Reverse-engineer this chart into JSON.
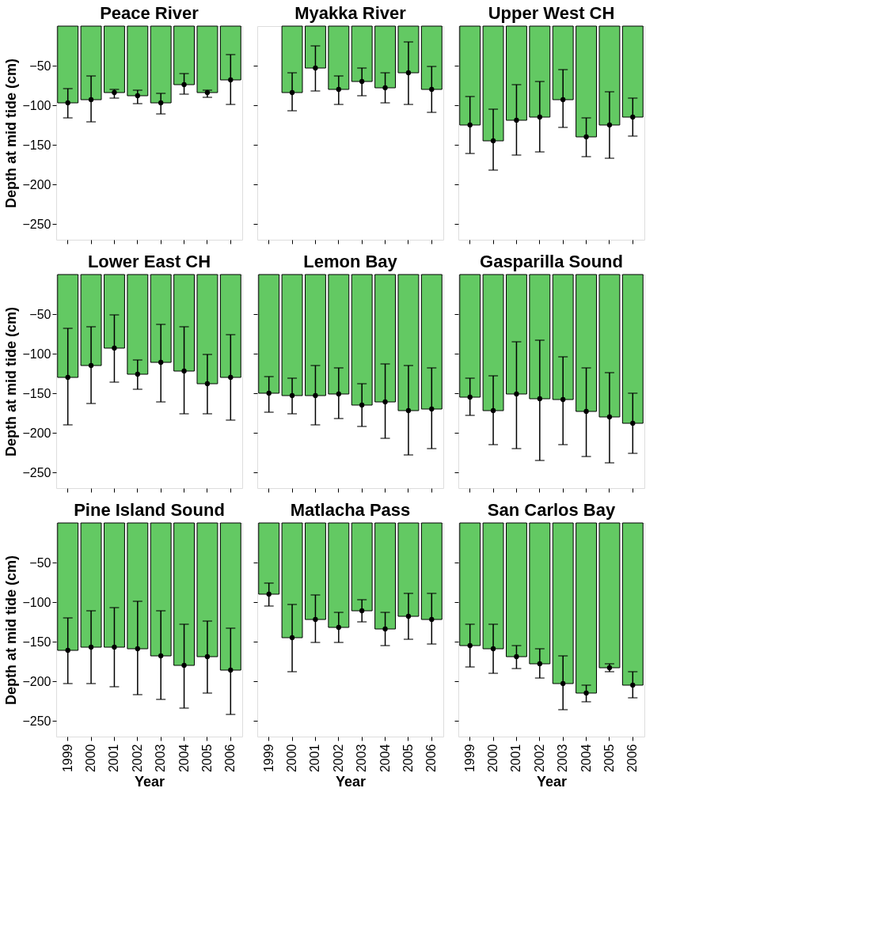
{
  "chart_data": [
    {
      "type": "bar",
      "title": "Peace River",
      "ylabel": "Depth at mid tide (cm)",
      "categories": [
        "1999",
        "2000",
        "2001",
        "2002",
        "2003",
        "2004",
        "2005",
        "2006"
      ],
      "series": [
        {
          "color": "#63c963",
          "values": [
            -97,
            -93,
            -84,
            -88,
            -97,
            -74,
            -84,
            -68
          ]
        },
        {
          "type": "scatter",
          "color": "#000000",
          "marker": "circle",
          "values": [
            -97,
            -93,
            -84,
            -88,
            -97,
            -74,
            -84,
            -68
          ],
          "errors": [
            [
              -116,
              -79
            ],
            [
              -121,
              -63
            ],
            [
              -91,
              -80
            ],
            [
              -98,
              -81
            ],
            [
              -111,
              -85
            ],
            [
              -86,
              -60
            ],
            [
              -90,
              -81
            ],
            [
              -99,
              -36
            ]
          ]
        }
      ],
      "ylim": [
        -270,
        0
      ],
      "yticks": [
        -250,
        -200,
        -150,
        -100,
        -50
      ],
      "grid": false,
      "tick_labels": "y"
    },
    {
      "type": "bar",
      "title": "Myakka River",
      "categories": [
        "1999",
        "2000",
        "2001",
        "2002",
        "2003",
        "2004",
        "2005",
        "2006"
      ],
      "series": [
        {
          "color": "#63c963",
          "values": [
            null,
            -84,
            -53,
            -80,
            -70,
            -78,
            -59,
            -80
          ]
        },
        {
          "type": "scatter",
          "color": "#000000",
          "marker": "circle",
          "values": [
            null,
            -84,
            -53,
            -80,
            -70,
            -78,
            -59,
            -80
          ],
          "errors": [
            null,
            [
              -107,
              -59
            ],
            [
              -82,
              -25
            ],
            [
              -99,
              -63
            ],
            [
              -88,
              -53
            ],
            [
              -97,
              -59
            ],
            [
              -99,
              -20
            ],
            [
              -109,
              -51
            ]
          ]
        }
      ],
      "ylim": [
        -270,
        0
      ],
      "yticks": [
        -250,
        -200,
        -150,
        -100,
        -50
      ],
      "grid": false,
      "tick_labels": false
    },
    {
      "type": "bar",
      "title": "Upper West CH",
      "categories": [
        "1999",
        "2000",
        "2001",
        "2002",
        "2003",
        "2004",
        "2005",
        "2006"
      ],
      "series": [
        {
          "color": "#63c963",
          "values": [
            -125,
            -145,
            -119,
            -115,
            -93,
            -140,
            -125,
            -115
          ]
        },
        {
          "type": "scatter",
          "color": "#000000",
          "marker": "circle",
          "values": [
            -125,
            -145,
            -119,
            -115,
            -93,
            -140,
            -125,
            -115
          ],
          "errors": [
            [
              -161,
              -89
            ],
            [
              -182,
              -105
            ],
            [
              -163,
              -74
            ],
            [
              -159,
              -70
            ],
            [
              -128,
              -55
            ],
            [
              -165,
              -116
            ],
            [
              -167,
              -83
            ],
            [
              -139,
              -91
            ]
          ]
        }
      ],
      "ylim": [
        -270,
        0
      ],
      "yticks": [
        -250,
        -200,
        -150,
        -100,
        -50
      ],
      "grid": false,
      "tick_labels": false
    },
    {
      "type": "bar",
      "title": "Lower East CH",
      "ylabel": "Depth at mid tide (cm)",
      "categories": [
        "1999",
        "2000",
        "2001",
        "2002",
        "2003",
        "2004",
        "2005",
        "2006"
      ],
      "series": [
        {
          "color": "#63c963",
          "values": [
            -130,
            -115,
            -93,
            -126,
            -111,
            -122,
            -138,
            -130
          ]
        },
        {
          "type": "scatter",
          "color": "#000000",
          "marker": "circle",
          "values": [
            -130,
            -115,
            -93,
            -126,
            -111,
            -122,
            -138,
            -130
          ],
          "errors": [
            [
              -190,
              -68
            ],
            [
              -163,
              -66
            ],
            [
              -136,
              -51
            ],
            [
              -145,
              -108
            ],
            [
              -161,
              -63
            ],
            [
              -176,
              -66
            ],
            [
              -176,
              -101
            ],
            [
              -184,
              -76
            ]
          ]
        }
      ],
      "ylim": [
        -270,
        0
      ],
      "yticks": [
        -250,
        -200,
        -150,
        -100,
        -50
      ],
      "grid": false,
      "tick_labels": "y"
    },
    {
      "type": "bar",
      "title": "Lemon Bay",
      "categories": [
        "1999",
        "2000",
        "2001",
        "2002",
        "2003",
        "2004",
        "2005",
        "2006"
      ],
      "series": [
        {
          "color": "#63c963",
          "values": [
            -150,
            -153,
            -153,
            -151,
            -165,
            -161,
            -172,
            -170
          ]
        },
        {
          "type": "scatter",
          "color": "#000000",
          "marker": "circle",
          "values": [
            -150,
            -153,
            -153,
            -151,
            -165,
            -161,
            -172,
            -170
          ],
          "errors": [
            [
              -174,
              -129
            ],
            [
              -176,
              -131
            ],
            [
              -190,
              -115
            ],
            [
              -182,
              -118
            ],
            [
              -192,
              -138
            ],
            [
              -207,
              -113
            ],
            [
              -228,
              -115
            ],
            [
              -220,
              -118
            ]
          ]
        }
      ],
      "ylim": [
        -270,
        0
      ],
      "yticks": [
        -250,
        -200,
        -150,
        -100,
        -50
      ],
      "grid": false,
      "tick_labels": false
    },
    {
      "type": "bar",
      "title": "Gasparilla Sound",
      "categories": [
        "1999",
        "2000",
        "2001",
        "2002",
        "2003",
        "2004",
        "2005",
        "2006"
      ],
      "series": [
        {
          "color": "#63c963",
          "values": [
            -155,
            -172,
            -151,
            -157,
            -158,
            -173,
            -180,
            -188
          ]
        },
        {
          "type": "scatter",
          "color": "#000000",
          "marker": "circle",
          "values": [
            -155,
            -172,
            -151,
            -157,
            -158,
            -173,
            -180,
            -188
          ],
          "errors": [
            [
              -178,
              -131
            ],
            [
              -215,
              -128
            ],
            [
              -220,
              -85
            ],
            [
              -235,
              -83
            ],
            [
              -215,
              -104
            ],
            [
              -230,
              -118
            ],
            [
              -238,
              -124
            ],
            [
              -226,
              -150
            ]
          ]
        }
      ],
      "ylim": [
        -270,
        0
      ],
      "yticks": [
        -250,
        -200,
        -150,
        -100,
        -50
      ],
      "grid": false,
      "tick_labels": false
    },
    {
      "type": "bar",
      "title": "Pine Island Sound",
      "xlabel": "Year",
      "ylabel": "Depth at mid tide (cm)",
      "categories": [
        "1999",
        "2000",
        "2001",
        "2002",
        "2003",
        "2004",
        "2005",
        "2006"
      ],
      "series": [
        {
          "color": "#63c963",
          "values": [
            -161,
            -157,
            -157,
            -159,
            -168,
            -180,
            -169,
            -186
          ]
        },
        {
          "type": "scatter",
          "color": "#000000",
          "marker": "circle",
          "values": [
            -161,
            -157,
            -157,
            -159,
            -168,
            -180,
            -169,
            -186
          ],
          "errors": [
            [
              -203,
              -120
            ],
            [
              -203,
              -111
            ],
            [
              -207,
              -107
            ],
            [
              -217,
              -99
            ],
            [
              -223,
              -111
            ],
            [
              -234,
              -128
            ],
            [
              -215,
              -124
            ],
            [
              -242,
              -133
            ]
          ]
        }
      ],
      "ylim": [
        -270,
        0
      ],
      "yticks": [
        -250,
        -200,
        -150,
        -100,
        -50
      ],
      "grid": false
    },
    {
      "type": "bar",
      "title": "Matlacha Pass",
      "xlabel": "Year",
      "categories": [
        "1999",
        "2000",
        "2001",
        "2002",
        "2003",
        "2004",
        "2005",
        "2006"
      ],
      "series": [
        {
          "color": "#63c963",
          "values": [
            -90,
            -145,
            -122,
            -132,
            -111,
            -134,
            -118,
            -122
          ]
        },
        {
          "type": "scatter",
          "color": "#000000",
          "marker": "circle",
          "values": [
            -90,
            -145,
            -122,
            -132,
            -111,
            -134,
            -118,
            -122
          ],
          "errors": [
            [
              -105,
              -76
            ],
            [
              -188,
              -103
            ],
            [
              -151,
              -91
            ],
            [
              -151,
              -113
            ],
            [
              -125,
              -97
            ],
            [
              -155,
              -113
            ],
            [
              -147,
              -89
            ],
            [
              -153,
              -89
            ]
          ]
        }
      ],
      "ylim": [
        -270,
        0
      ],
      "yticks": [
        -250,
        -200,
        -150,
        -100,
        -50
      ],
      "grid": false,
      "tick_labels": "x"
    },
    {
      "type": "bar",
      "title": "San Carlos Bay",
      "xlabel": "Year",
      "categories": [
        "1999",
        "2000",
        "2001",
        "2002",
        "2003",
        "2004",
        "2005",
        "2006"
      ],
      "series": [
        {
          "color": "#63c963",
          "values": [
            -155,
            -159,
            -169,
            -178,
            -203,
            -215,
            -183,
            -205
          ]
        },
        {
          "type": "scatter",
          "color": "#000000",
          "marker": "circle",
          "values": [
            -155,
            -159,
            -169,
            -178,
            -203,
            -215,
            -183,
            -205
          ],
          "errors": [
            [
              -182,
              -128
            ],
            [
              -190,
              -128
            ],
            [
              -184,
              -155
            ],
            [
              -196,
              -159
            ],
            [
              -236,
              -168
            ],
            [
              -226,
              -205
            ],
            [
              -188,
              -178
            ],
            [
              -221,
              -188
            ]
          ]
        }
      ],
      "ylim": [
        -270,
        0
      ],
      "yticks": [
        -250,
        -200,
        -150,
        -100,
        -50
      ],
      "grid": false,
      "tick_labels": "x"
    }
  ]
}
